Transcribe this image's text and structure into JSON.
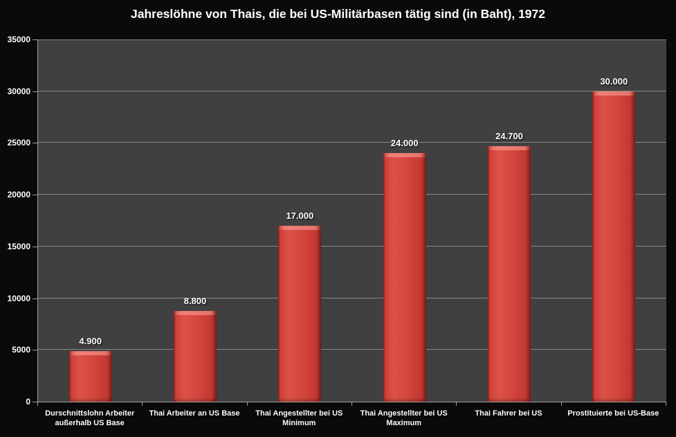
{
  "chart_data": {
    "type": "bar",
    "title": "Jahreslöhne von Thais, die bei US-Militärbasen tätig sind (in Baht), 1972",
    "categories": [
      "Durschnittslohn Arbeiter außerhalb US Base",
      "Thai Arbeiter an US Base",
      "Thai Angestellter bei US Minimum",
      "Thai Angestellter bei US Maximum",
      "Thai Fahrer bei US",
      "Prostituierte bei US-Base"
    ],
    "values": [
      4900,
      8800,
      17000,
      24000,
      24700,
      30000
    ],
    "value_labels": [
      "4.900",
      "8.800",
      "17.000",
      "24.000",
      "24.700",
      "30.000"
    ],
    "xlabel": "",
    "ylabel": "",
    "ylim": [
      0,
      35000
    ],
    "ytick_interval": 5000,
    "ytick_labels": [
      "0",
      "5000",
      "10000",
      "15000",
      "20000",
      "25000",
      "30000",
      "35000"
    ],
    "grid": true,
    "legend": "none"
  },
  "colors": {
    "background": "#0a0a0a",
    "plot_background": "#404040",
    "gridline": "#888888",
    "axis": "#a0a0a0",
    "bar_fill": "#d5463e",
    "bar_highlight": "#e96e63",
    "bar_edge": "#8a2620",
    "text": "#ffffff"
  }
}
